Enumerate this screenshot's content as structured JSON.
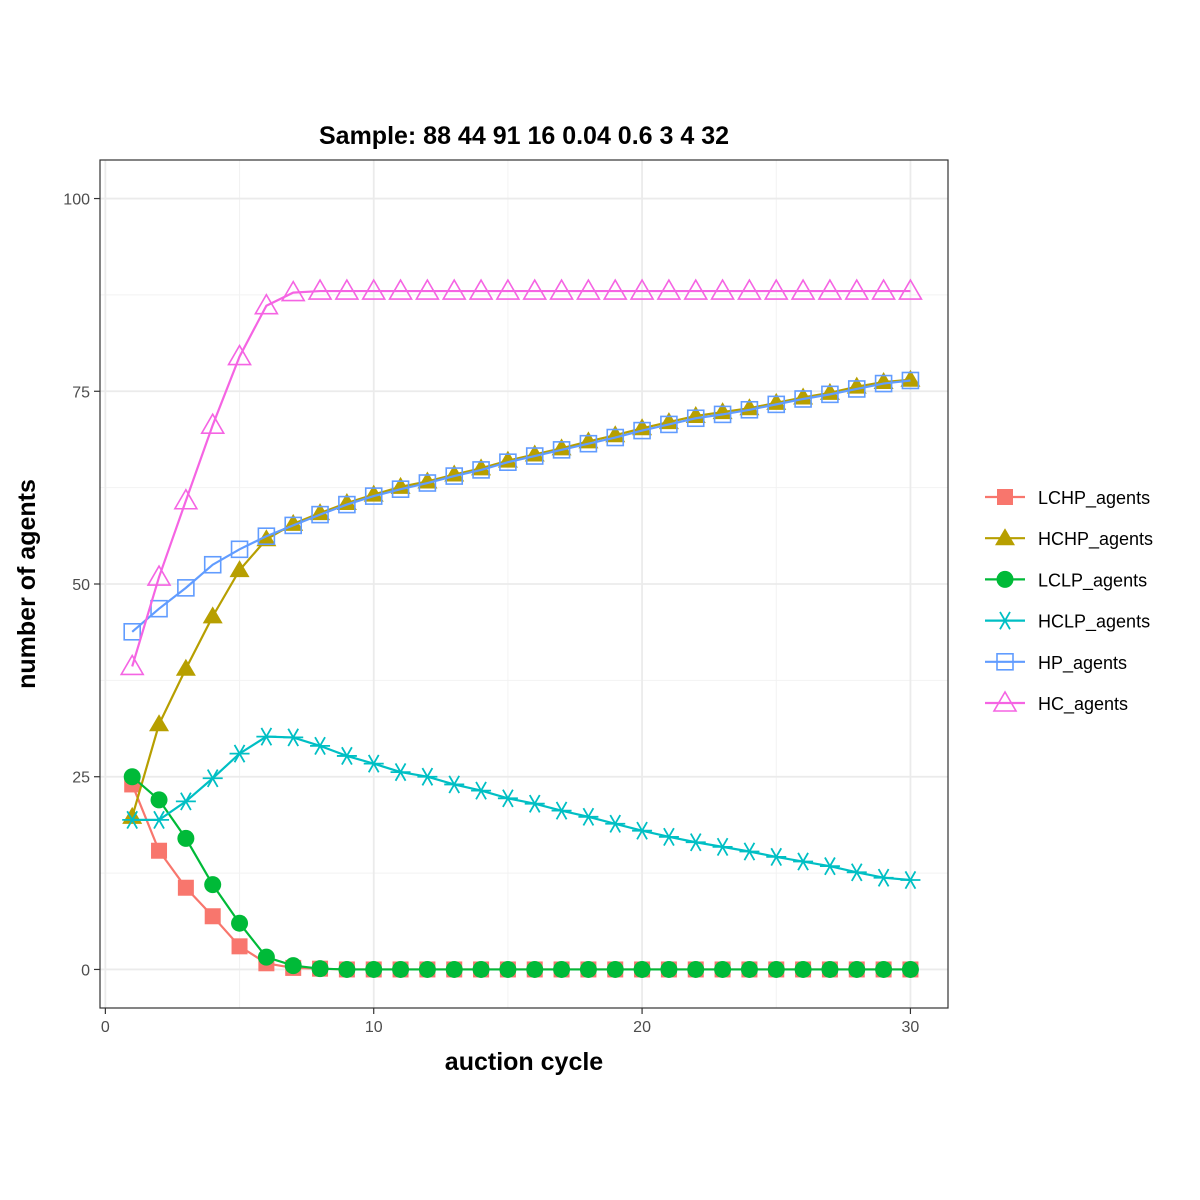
{
  "chart_data": {
    "type": "line",
    "title": "Sample: 88 44 91 16 0.04 0.6 3 4 32",
    "xlabel": "auction cycle",
    "ylabel": "number of agents",
    "xlim": [
      -0.2,
      31.4
    ],
    "ylim": [
      -5,
      105
    ],
    "xticks": [
      0,
      10,
      20,
      30
    ],
    "yticks": [
      0,
      25,
      50,
      75,
      100
    ],
    "grid": true,
    "legend_position": "right",
    "x": [
      1,
      2,
      3,
      4,
      5,
      6,
      7,
      8,
      9,
      10,
      11,
      12,
      13,
      14,
      15,
      16,
      17,
      18,
      19,
      20,
      21,
      22,
      23,
      24,
      25,
      26,
      27,
      28,
      29,
      30
    ],
    "series": [
      {
        "name": "LCHP_agents",
        "color": "#F8766D",
        "marker": "square",
        "values": [
          24,
          15.4,
          10.6,
          6.9,
          3,
          0.8,
          0.2,
          0.1,
          0,
          0,
          0,
          0,
          0,
          0,
          0,
          0,
          0,
          0,
          0,
          0,
          0,
          0,
          0,
          0,
          0,
          0,
          0,
          0,
          0,
          0
        ]
      },
      {
        "name": "HCHP_agents",
        "color": "#B79F00",
        "marker": "triangle",
        "values": [
          19.8,
          31.8,
          39,
          45.8,
          51.8,
          55.8,
          57.8,
          59.2,
          60.5,
          61.6,
          62.6,
          63.3,
          64.2,
          65,
          66,
          66.8,
          67.6,
          68.5,
          69.3,
          70.2,
          71,
          71.8,
          72.3,
          72.8,
          73.5,
          74.2,
          74.8,
          75.6,
          76.2,
          76.5
        ]
      },
      {
        "name": "LCLP_agents",
        "color": "#00BA38",
        "marker": "circle",
        "values": [
          25,
          22,
          17,
          11,
          6,
          1.6,
          0.5,
          0.1,
          0,
          0,
          0,
          0,
          0,
          0,
          0,
          0,
          0,
          0,
          0,
          0,
          0,
          0,
          0,
          0,
          0,
          0,
          0,
          0,
          0,
          0
        ]
      },
      {
        "name": "HCLP_agents",
        "color": "#00BFC4",
        "marker": "asterisk",
        "values": [
          19.4,
          19.4,
          21.8,
          24.8,
          28,
          30.2,
          30.1,
          29,
          27.7,
          26.7,
          25.6,
          25,
          24,
          23.2,
          22.2,
          21.5,
          20.6,
          19.8,
          18.9,
          18,
          17.2,
          16.5,
          15.9,
          15.3,
          14.6,
          14,
          13.4,
          12.6,
          11.9,
          11.6
        ]
      },
      {
        "name": "HP_agents",
        "color": "#619CFF",
        "marker": "square-open",
        "values": [
          43.8,
          46.8,
          49.5,
          52.5,
          54.5,
          56.2,
          57.6,
          59,
          60.3,
          61.4,
          62.3,
          63.1,
          64,
          64.8,
          65.8,
          66.6,
          67.4,
          68.2,
          69,
          69.9,
          70.7,
          71.5,
          72,
          72.6,
          73.3,
          74,
          74.6,
          75.3,
          76,
          76.4
        ]
      },
      {
        "name": "HC_agents",
        "color": "#F564E3",
        "marker": "triangle-open",
        "values": [
          39.3,
          50.9,
          60.8,
          70.6,
          79.5,
          86.1,
          87.8,
          88,
          88,
          88,
          88,
          88,
          88,
          88,
          88,
          88,
          88,
          88,
          88,
          88,
          88,
          88,
          88,
          88,
          88,
          88,
          88,
          88,
          88,
          88
        ]
      }
    ]
  }
}
